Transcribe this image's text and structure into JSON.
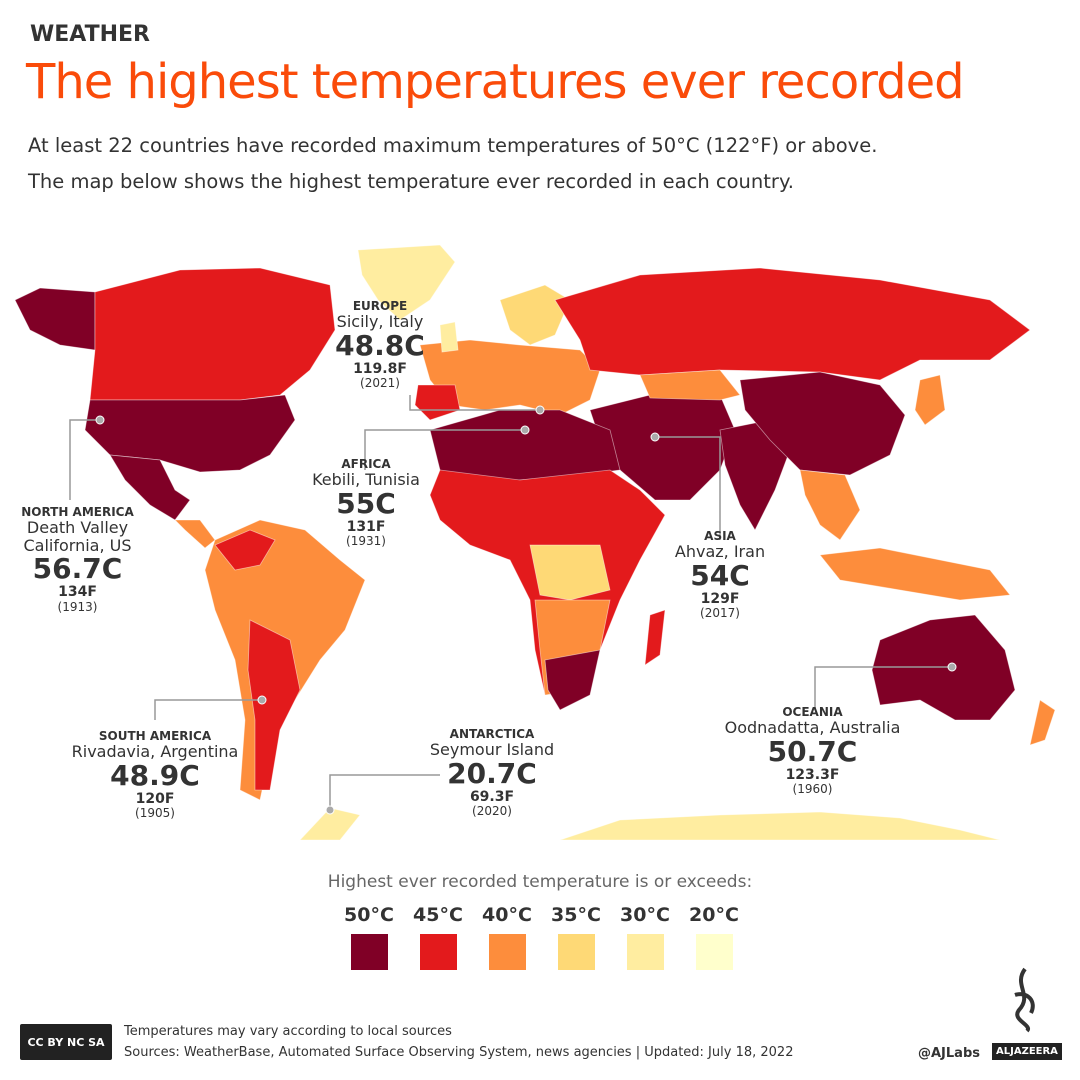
{
  "header": {
    "kicker": "WEATHER",
    "title": "The highest temperatures ever recorded",
    "subtitle_line1": "At least 22 countries have recorded maximum temperatures of 50°C (122°F) or above.",
    "subtitle_line2": "The map below shows the highest temperature ever recorded in each country."
  },
  "colors": {
    "50C": "#800026",
    "45C": "#e31a1c",
    "40C": "#fd8d3c",
    "35C": "#fed976",
    "30C": "#ffeda0",
    "20C": "#ffffcc",
    "title": "#fa4b0a"
  },
  "records": [
    {
      "region": "EUROPE",
      "place": "Sicily, Italy",
      "celsius": "48.8C",
      "fahrenheit": "119.8F",
      "year": "(2021)"
    },
    {
      "region": "AFRICA",
      "place": "Kebili, Tunisia",
      "celsius": "55C",
      "fahrenheit": "131F",
      "year": "(1931)"
    },
    {
      "region": "NORTH AMERICA",
      "place": "Death Valley",
      "place2": "California, US",
      "celsius": "56.7C",
      "fahrenheit": "134F",
      "year": "(1913)"
    },
    {
      "region": "ASIA",
      "place": "Ahvaz, Iran",
      "celsius": "54C",
      "fahrenheit": "129F",
      "year": "(2017)"
    },
    {
      "region": "SOUTH AMERICA",
      "place": "Rivadavia, Argentina",
      "celsius": "48.9C",
      "fahrenheit": "120F",
      "year": "(1905)"
    },
    {
      "region": "ANTARCTICA",
      "place": "Seymour Island",
      "celsius": "20.7C",
      "fahrenheit": "69.3F",
      "year": "(2020)"
    },
    {
      "region": "OCEANIA",
      "place": "Oodnadatta, Australia",
      "celsius": "50.7C",
      "fahrenheit": "123.3F",
      "year": "(1960)"
    }
  ],
  "legend": {
    "title": "Highest ever recorded temperature is or exceeds:",
    "items": [
      {
        "label": "50°C",
        "color": "#800026"
      },
      {
        "label": "45°C",
        "color": "#e31a1c"
      },
      {
        "label": "40°C",
        "color": "#fd8d3c"
      },
      {
        "label": "35°C",
        "color": "#fed976"
      },
      {
        "label": "30°C",
        "color": "#ffeda0"
      },
      {
        "label": "20°C",
        "color": "#ffffcc"
      }
    ]
  },
  "footer": {
    "license": "CC BY NC SA",
    "note": "Temperatures may vary according to local sources",
    "sources": "Sources: WeatherBase, Automated Surface Observing System, news agencies  |  Updated: July 18, 2022",
    "handle": "@AJLabs",
    "brand": "ALJAZEERA"
  }
}
